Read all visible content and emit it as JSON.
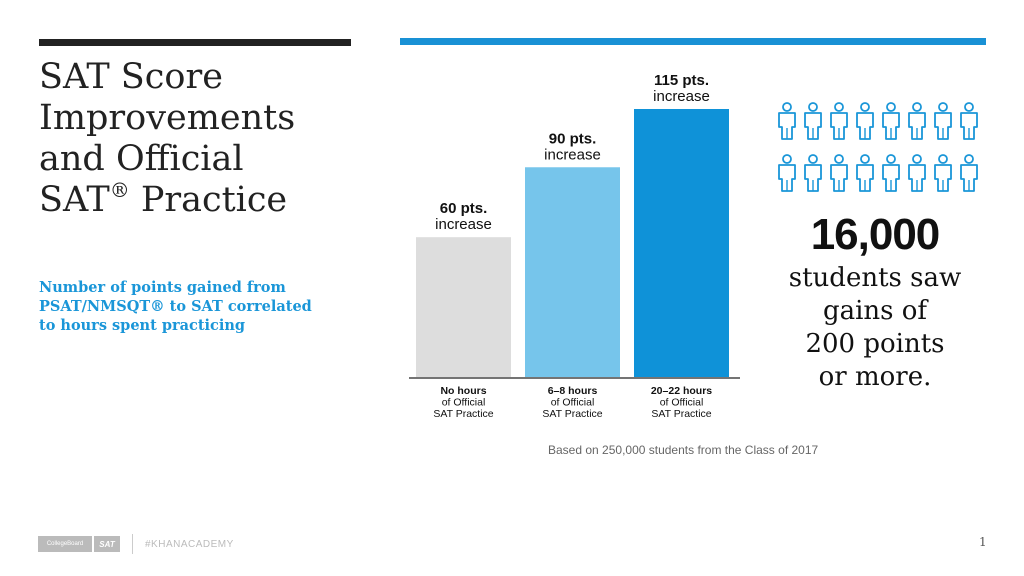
{
  "slide": {
    "title": "SAT Score\nImprovements\nand Official\nSAT",
    "title_mark": "®",
    "title_end": " Practice",
    "subtitle": "Number of points gained from\nPSAT/NMSQT® to SAT correlated\nto hours spent practicing",
    "footnote": "Based on 250,000 students from the Class of 2017",
    "page_number": "1",
    "accent_color": "#1991d5",
    "footer": {
      "collegeboard_label": "CollegeBoard",
      "sat_label": "SAT",
      "khan_label": "#KHANACADEMY"
    }
  },
  "stat": {
    "number": "16,000",
    "text": "students saw\ngains of\n200 points\nor more.",
    "icon_rows": 2,
    "icons_per_row": 8,
    "icon_name": "person-icon",
    "icon_color": "#1a96d8"
  },
  "chart_data": {
    "type": "bar",
    "categories": [
      [
        "No hours",
        "of Official",
        "SAT Practice"
      ],
      [
        "6–8 hours",
        "of Official",
        "SAT Practice"
      ],
      [
        "20–22 hours",
        "of Official",
        "SAT Practice"
      ]
    ],
    "values": [
      60,
      90,
      115
    ],
    "value_labels": [
      "60 pts.",
      "90 pts.",
      "115 pts."
    ],
    "value_sublabel": "increase",
    "colors": [
      "#dddddd",
      "#76c5eb",
      "#0f92d8"
    ],
    "title": "",
    "xlabel": "",
    "ylabel": "",
    "grid": false
  }
}
